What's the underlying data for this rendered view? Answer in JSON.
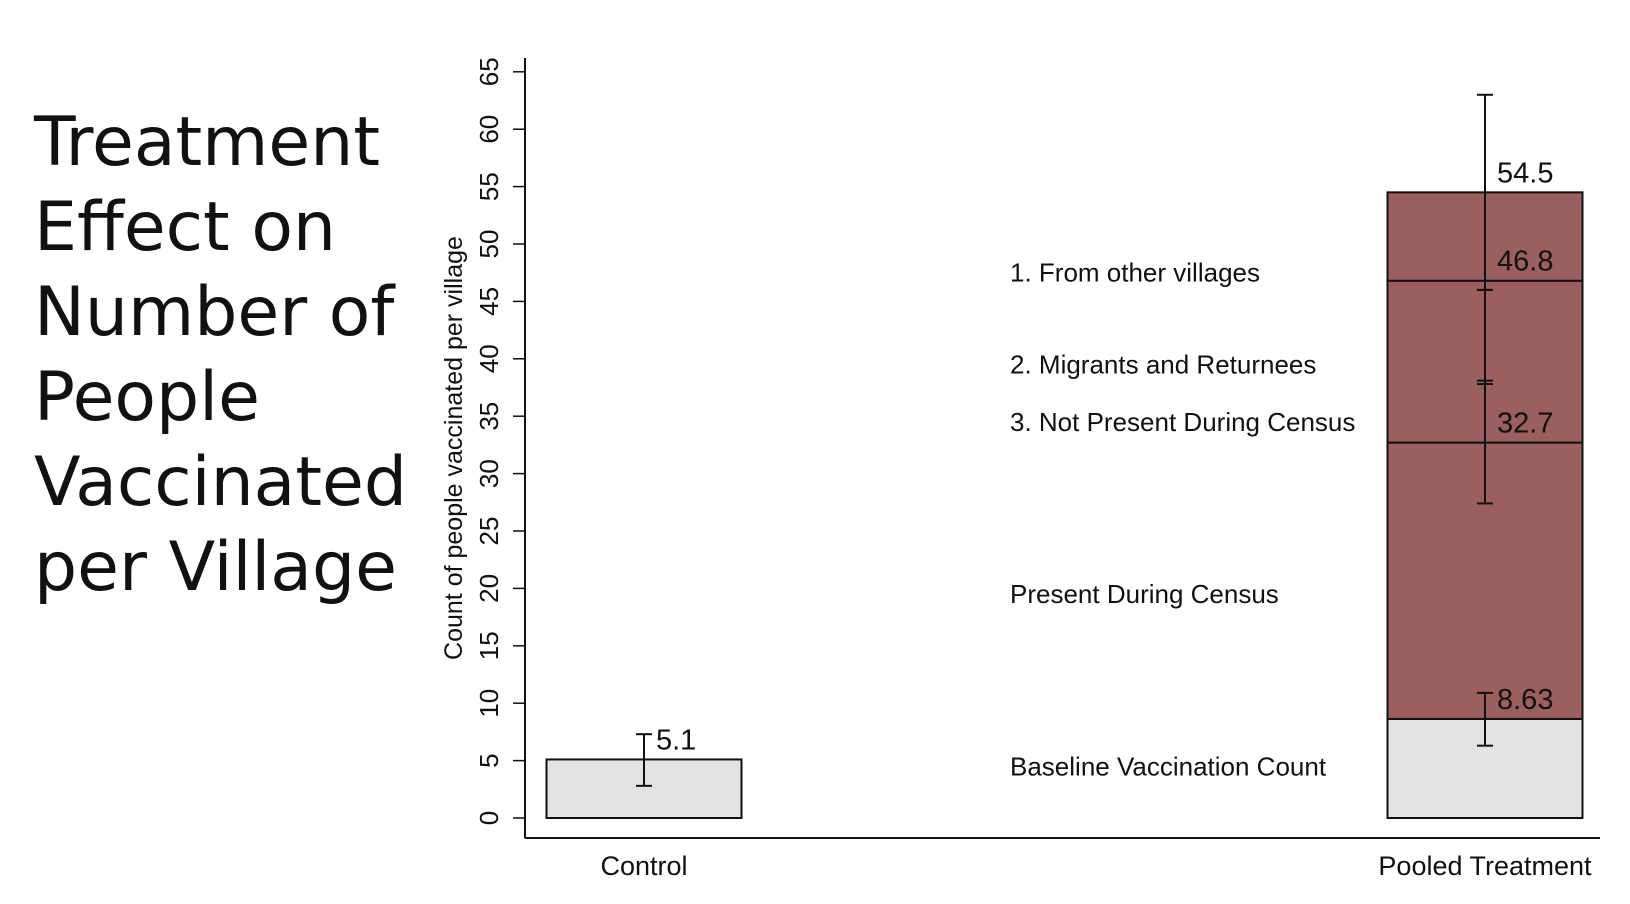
{
  "slide": {
    "title": "Treatment\nEffect on\nNumber of\nPeople\nVaccinated\nper Village"
  },
  "chart_data": {
    "type": "bar",
    "ylabel": "Count of people vaccinated per village",
    "xlabel": "",
    "ylim": [
      0,
      66
    ],
    "yticks": [
      0,
      5,
      10,
      15,
      20,
      25,
      30,
      35,
      40,
      45,
      50,
      55,
      60,
      65
    ],
    "grid": false,
    "categories": [
      "Control",
      "Pooled Treatment"
    ],
    "colors": {
      "baseline": "#e3e3e3",
      "treatment": "#9b5f60",
      "outline": "#111111"
    },
    "bars": [
      {
        "category": "Control",
        "segments": [
          {
            "from": 0,
            "to": 5.1,
            "fill": "baseline"
          }
        ],
        "error_bars": [
          {
            "center": 5.1,
            "low": 2.8,
            "high": 7.3,
            "label": "5.1"
          }
        ]
      },
      {
        "category": "Pooled Treatment",
        "segments": [
          {
            "from": 0,
            "to": 8.63,
            "fill": "baseline"
          },
          {
            "from": 8.63,
            "to": 32.7,
            "fill": "treatment"
          },
          {
            "from": 32.7,
            "to": 46.8,
            "fill": "treatment"
          },
          {
            "from": 46.8,
            "to": 54.5,
            "fill": "treatment"
          }
        ],
        "error_bars": [
          {
            "center": 8.63,
            "low": 6.3,
            "high": 10.9,
            "label": "8.63"
          },
          {
            "center": 32.7,
            "low": 27.4,
            "high": 38.1,
            "label": "32.7"
          },
          {
            "center": 46.8,
            "low": 37.8,
            "high": 46.0,
            "label": "46.8"
          },
          {
            "center": 54.5,
            "low": 46.0,
            "high": 63.0,
            "label": "54.5"
          }
        ]
      }
    ],
    "annotations": [
      {
        "text": "Baseline Vaccination Count",
        "y": 4.5
      },
      {
        "text": "Present During Census",
        "y": 19.5
      },
      {
        "text": "3. Not Present During Census",
        "y": 34.5
      },
      {
        "text": "2. Migrants and Returnees",
        "y": 39.5
      },
      {
        "text": "1. From other villages",
        "y": 47.5
      }
    ]
  }
}
